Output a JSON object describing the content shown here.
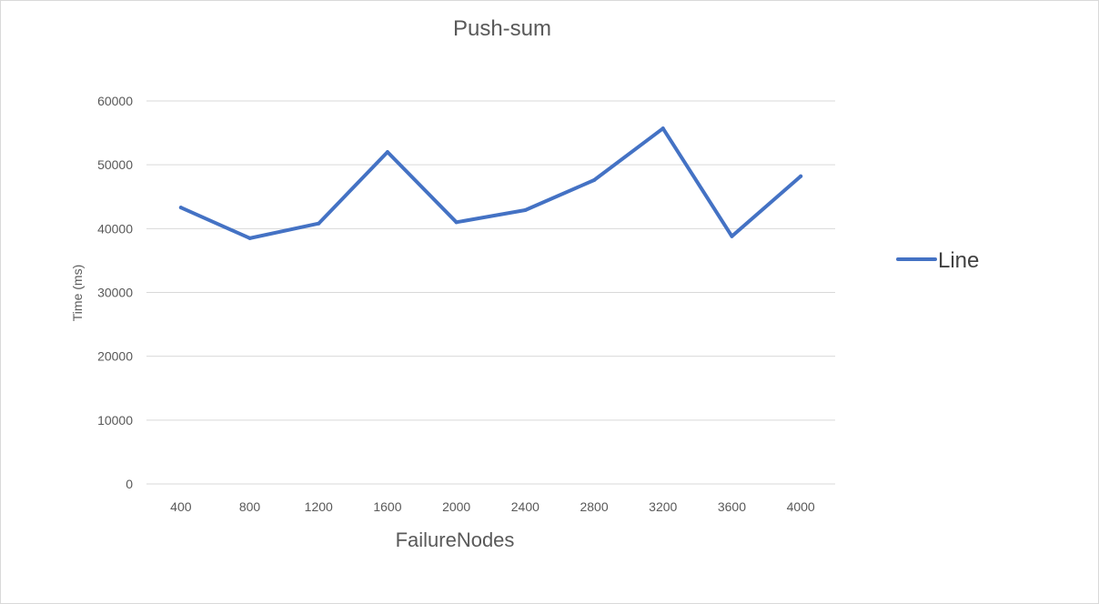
{
  "chart_data": {
    "type": "line",
    "title": "Push-sum",
    "xlabel": "FailureNodes",
    "ylabel": "Time (ms)",
    "categories": [
      "400",
      "800",
      "1200",
      "1600",
      "2000",
      "2400",
      "2800",
      "3200",
      "3600",
      "4000"
    ],
    "series": [
      {
        "name": "Line",
        "color": "#4472c4",
        "values": [
          43300,
          38500,
          40800,
          52000,
          41000,
          42900,
          47600,
          55700,
          38800,
          48200
        ]
      }
    ],
    "ylim": [
      0,
      60000
    ],
    "yticks": [
      "0",
      "10000",
      "20000",
      "30000",
      "40000",
      "50000",
      "60000"
    ],
    "grid": true,
    "legend_position": "right"
  }
}
